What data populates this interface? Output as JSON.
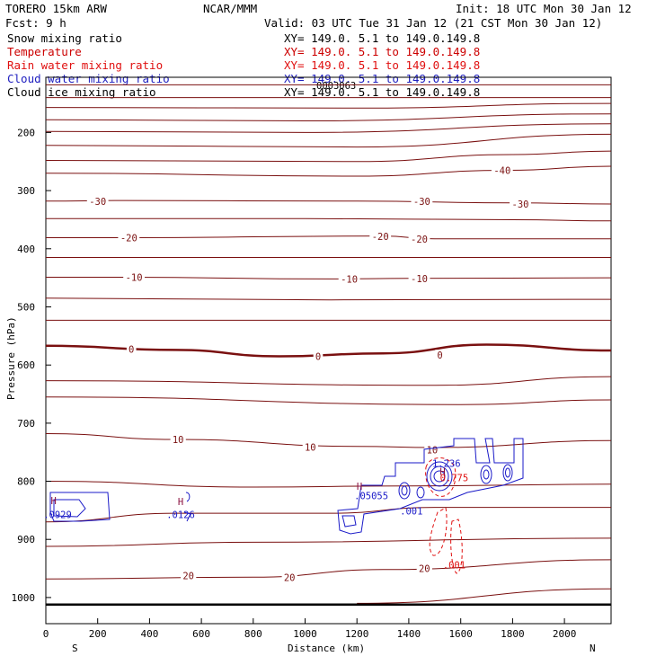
{
  "header": {
    "model": "TORERO  15km ARW",
    "org": "NCAR/MMM",
    "init": "Init: 18 UTC Mon 30 Jan 12",
    "fcst": "Fcst:    9 h",
    "valid": "Valid: 03 UTC Tue 31 Jan 12 (21 CST Mon 30 Jan 12)"
  },
  "legend": [
    {
      "label": "Snow mixing ratio",
      "xy": "",
      "color": "#000000"
    },
    {
      "label": "Temperature",
      "xy": "XY= 149.0.  5.1 to 149.0.149.8",
      "color": "#cc0000"
    },
    {
      "label": "Rain water mixing ratio",
      "xy": "XY= 149.0.  5.1 to 149.0.149.8",
      "color": "#e01010"
    },
    {
      "label": "Cloud water mixing ratio",
      "xy": "XY= 149.0.  5.1 to 149.0.149.8",
      "color": "#2020c0"
    },
    {
      "label": "Cloud ice mixing ratio",
      "xy": "XY= 149.0.  5.1 to 149.0.149.8",
      "color": "#000000"
    }
  ],
  "first_xy": "XY= 149.0.  5.1 to 149.0.149.8",
  "overlay_text": "0003063",
  "colors": {
    "temperature": "#7a1010",
    "rain": "#e01010",
    "cloud_water": "#1a1ac8",
    "axis": "#000000"
  },
  "chart_data": {
    "type": "contour",
    "xlabel": "Distance (km)",
    "ylabel": "Pressure (hPa)",
    "x_range": [
      0,
      2180
    ],
    "y_range": [
      105,
      1045
    ],
    "x_ticks": [
      0,
      200,
      400,
      600,
      800,
      1000,
      1200,
      1400,
      1600,
      1800,
      2000
    ],
    "y_ticks": [
      200,
      300,
      400,
      500,
      600,
      700,
      800,
      900,
      1000
    ],
    "x_end_left": "S",
    "x_end_right": "N",
    "temperature_isotherms": [
      {
        "label": "",
        "pts": [
          [
            0,
            118
          ],
          [
            2180,
            118
          ]
        ]
      },
      {
        "label": "",
        "pts": [
          [
            0,
            140
          ],
          [
            2180,
            140
          ]
        ]
      },
      {
        "label": "",
        "pts": [
          [
            0,
            157
          ],
          [
            1200,
            158
          ],
          [
            2180,
            150
          ]
        ]
      },
      {
        "label": "",
        "pts": [
          [
            0,
            178
          ],
          [
            1000,
            180
          ],
          [
            2180,
            168
          ]
        ]
      },
      {
        "label": "",
        "pts": [
          [
            0,
            198
          ],
          [
            1000,
            200
          ],
          [
            2180,
            185
          ]
        ]
      },
      {
        "label": "",
        "pts": [
          [
            0,
            222
          ],
          [
            1200,
            225
          ],
          [
            2180,
            203
          ]
        ]
      },
      {
        "label": "",
        "pts": [
          [
            0,
            248
          ],
          [
            1200,
            250
          ],
          [
            1800,
            238
          ],
          [
            2180,
            232
          ]
        ]
      },
      {
        "label": "-40",
        "pts": [
          [
            0,
            270
          ],
          [
            1200,
            275
          ],
          [
            1780,
            265
          ],
          [
            2180,
            258
          ]
        ]
      },
      {
        "label": "-30",
        "pts": [
          [
            0,
            318
          ],
          [
            300,
            317
          ],
          [
            1200,
            318
          ],
          [
            1800,
            321
          ],
          [
            2180,
            323
          ]
        ]
      },
      {
        "label": "",
        "pts": [
          [
            0,
            348
          ],
          [
            1000,
            348
          ],
          [
            1800,
            350
          ],
          [
            2180,
            352
          ]
        ]
      },
      {
        "label": "-20",
        "pts": [
          [
            0,
            381
          ],
          [
            300,
            381
          ],
          [
            1300,
            378
          ],
          [
            1500,
            383
          ],
          [
            2180,
            383
          ]
        ]
      },
      {
        "label": "",
        "pts": [
          [
            0,
            415
          ],
          [
            1000,
            415
          ],
          [
            2180,
            415
          ]
        ]
      },
      {
        "label": "-10",
        "pts": [
          [
            0,
            449
          ],
          [
            300,
            449
          ],
          [
            1100,
            452
          ],
          [
            1400,
            451
          ],
          [
            2180,
            450
          ]
        ]
      },
      {
        "label": "",
        "pts": [
          [
            0,
            485
          ],
          [
            1100,
            488
          ],
          [
            2180,
            487
          ]
        ]
      },
      {
        "label": "",
        "pts": [
          [
            0,
            523
          ],
          [
            2180,
            523
          ]
        ]
      },
      {
        "label": "0",
        "pts": [
          [
            0,
            567
          ],
          [
            500,
            574
          ],
          [
            900,
            585
          ],
          [
            1300,
            580
          ],
          [
            1700,
            565
          ],
          [
            2180,
            575
          ]
        ]
      },
      {
        "label": "",
        "pts": [
          [
            0,
            627
          ],
          [
            1500,
            635
          ],
          [
            2180,
            620
          ]
        ]
      },
      {
        "label": "",
        "pts": [
          [
            0,
            655
          ],
          [
            1600,
            668
          ],
          [
            2180,
            660
          ]
        ]
      },
      {
        "label": "10",
        "pts": [
          [
            0,
            718
          ],
          [
            500,
            728
          ],
          [
            1200,
            740
          ],
          [
            1500,
            742
          ],
          [
            2180,
            730
          ]
        ]
      },
      {
        "label": "",
        "pts": [
          [
            0,
            800
          ],
          [
            800,
            810
          ],
          [
            1400,
            808
          ],
          [
            2180,
            805
          ]
        ]
      },
      {
        "label": "",
        "pts": [
          [
            0,
            870
          ],
          [
            500,
            855
          ],
          [
            1100,
            855
          ],
          [
            1500,
            845
          ],
          [
            2180,
            845
          ]
        ]
      },
      {
        "label": "",
        "pts": [
          [
            0,
            912
          ],
          [
            800,
            905
          ],
          [
            2180,
            898
          ]
        ]
      },
      {
        "label": "20",
        "pts": [
          [
            0,
            968
          ],
          [
            800,
            965
          ],
          [
            1300,
            952
          ],
          [
            2180,
            935
          ]
        ]
      },
      {
        "label": "",
        "pts": [
          [
            1200,
            1010
          ],
          [
            2180,
            985
          ]
        ]
      }
    ],
    "isotherm_labels": [
      {
        "text": "-40",
        "x": 1760,
        "p": 265
      },
      {
        "text": "-30",
        "x": 200,
        "p": 318
      },
      {
        "text": "-30",
        "x": 1450,
        "p": 318
      },
      {
        "text": "-30",
        "x": 1830,
        "p": 323
      },
      {
        "text": "-20",
        "x": 320,
        "p": 381
      },
      {
        "text": "-20",
        "x": 1290,
        "p": 379
      },
      {
        "text": "-20",
        "x": 1440,
        "p": 383
      },
      {
        "text": "-10",
        "x": 340,
        "p": 449
      },
      {
        "text": "-10",
        "x": 1170,
        "p": 452
      },
      {
        "text": "-10",
        "x": 1440,
        "p": 451
      },
      {
        "text": "0",
        "x": 330,
        "p": 573
      },
      {
        "text": "0",
        "x": 1050,
        "p": 585
      },
      {
        "text": "0",
        "x": 1520,
        "p": 583
      },
      {
        "text": "10",
        "x": 510,
        "p": 728
      },
      {
        "text": "10",
        "x": 1020,
        "p": 741
      },
      {
        "text": "10",
        "x": 1490,
        "p": 746
      },
      {
        "text": "20",
        "x": 550,
        "p": 962
      },
      {
        "text": "20",
        "x": 940,
        "p": 965
      },
      {
        "text": "20",
        "x": 1460,
        "p": 950
      }
    ],
    "ground_line_hpa": 1012,
    "rain_water_labels": [
      {
        "text": ".001",
        "x": 1575,
        "p": 950
      },
      {
        "text": "0.775",
        "x": 1575,
        "p": 800
      }
    ],
    "cloud_water_labels": [
      {
        "text": "H",
        "x": 30,
        "p": 839
      },
      {
        "text": ".0929",
        "x": 45,
        "p": 863
      },
      {
        "text": "H",
        "x": 520,
        "p": 841
      },
      {
        "text": ".0126",
        "x": 520,
        "p": 863
      },
      {
        "text": "H",
        "x": 1210,
        "p": 815
      },
      {
        "text": ".05055",
        "x": 1255,
        "p": 831
      },
      {
        "text": ".001",
        "x": 1410,
        "p": 857
      },
      {
        "text": "H",
        "x": 1530,
        "p": 789
      },
      {
        "text": "1.236",
        "x": 1545,
        "p": 775
      }
    ]
  }
}
